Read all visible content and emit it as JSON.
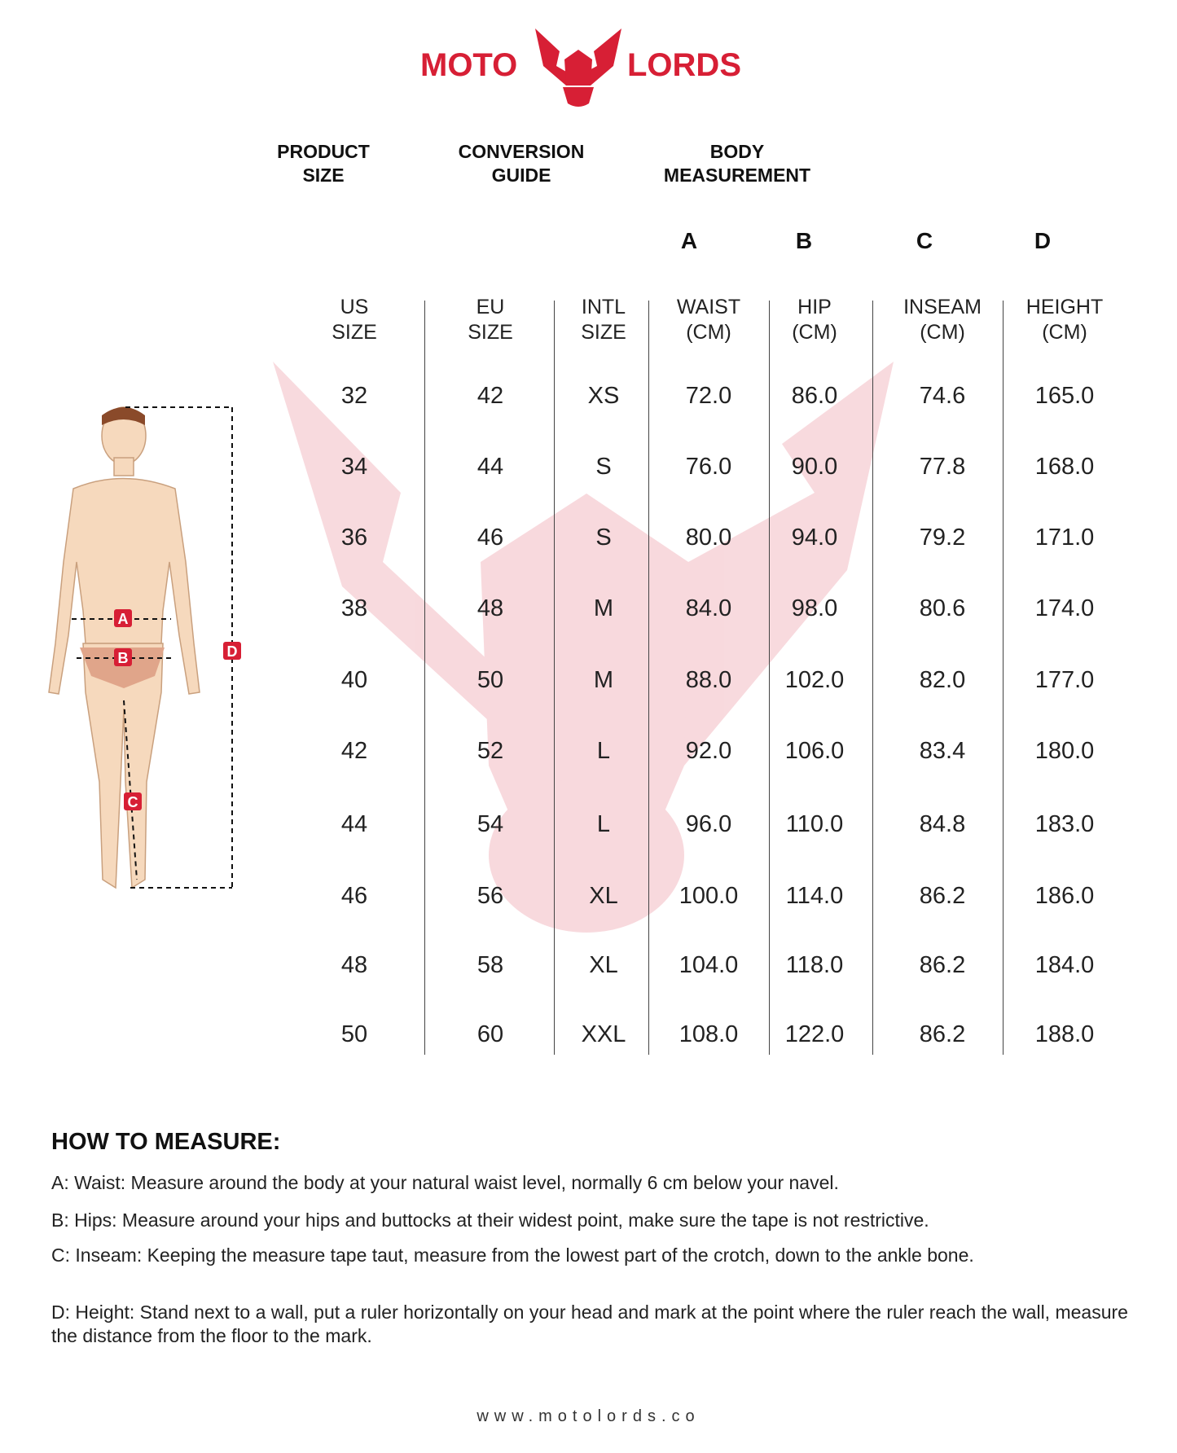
{
  "brand": {
    "left": "MOTO",
    "right": "LORDS",
    "color": "#d71f35"
  },
  "groups": {
    "product": "PRODUCT SIZE",
    "conversion": "CONVERSION GUIDE",
    "body": "BODY MEASUREMENT"
  },
  "letters": [
    "A",
    "B",
    "C",
    "D"
  ],
  "columns": [
    {
      "l1": "US",
      "l2": "SIZE"
    },
    {
      "l1": "EU",
      "l2": "SIZE"
    },
    {
      "l1": "INTL",
      "l2": "SIZE"
    },
    {
      "l1": "WAIST",
      "l2": "(CM)"
    },
    {
      "l1": "HIP",
      "l2": "(CM)"
    },
    {
      "l1": "INSEAM",
      "l2": "(CM)"
    },
    {
      "l1": "HEIGHT",
      "l2": "(CM)"
    }
  ],
  "rows": [
    [
      "32",
      "42",
      "XS",
      "72.0",
      "86.0",
      "74.6",
      "165.0"
    ],
    [
      "34",
      "44",
      "S",
      "76.0",
      "90.0",
      "77.8",
      "168.0"
    ],
    [
      "36",
      "46",
      "S",
      "80.0",
      "94.0",
      "79.2",
      "171.0"
    ],
    [
      "38",
      "48",
      "M",
      "84.0",
      "98.0",
      "80.6",
      "174.0"
    ],
    [
      "40",
      "50",
      "M",
      "88.0",
      "102.0",
      "82.0",
      "177.0"
    ],
    [
      "42",
      "52",
      "L",
      "92.0",
      "106.0",
      "83.4",
      "180.0"
    ],
    [
      "44",
      "54",
      "L",
      "96.0",
      "110.0",
      "84.8",
      "183.0"
    ],
    [
      "46",
      "56",
      "XL",
      "100.0",
      "114.0",
      "86.2",
      "186.0"
    ],
    [
      "48",
      "58",
      "XL",
      "104.0",
      "118.0",
      "86.2",
      "184.0"
    ],
    [
      "50",
      "60",
      "XXL",
      "108.0",
      "122.0",
      "86.2",
      "188.0"
    ]
  ],
  "figure_labels": [
    "A",
    "B",
    "C",
    "D"
  ],
  "howto": {
    "title": "HOW TO MEASURE:",
    "items": [
      "A: Waist: Measure around the body at your natural waist level, normally 6 cm below your navel.",
      "B: Hips: Measure around your hips and buttocks at their widest point, make sure the tape is not restrictive.",
      "C: Inseam: Keeping the measure tape taut, measure from the lowest part of the crotch, down to the ankle bone.",
      "D: Height: Stand next to a wall, put a ruler horizontally on your head and mark at the point where the ruler reach the wall, measure the distance from the floor to the mark."
    ]
  },
  "footer": "www.motolords.co"
}
